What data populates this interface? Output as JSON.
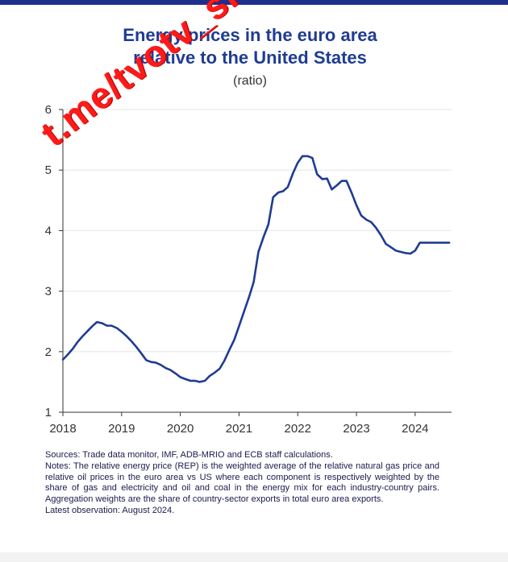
{
  "header": {
    "title_line1": "Energy prices in the euro area",
    "title_line2": "relative to the United States",
    "subtitle": "(ratio)"
  },
  "watermark": "t.me/tvotv_sk",
  "colors": {
    "line": "#1f3c93",
    "title": "#1f3c93",
    "watermark": "#ff1a1a",
    "topbar": "#1f2f8c"
  },
  "chart_data": {
    "type": "line",
    "title": "Energy prices in the euro area relative to the United States",
    "ylabel": "(ratio)",
    "ylim": [
      1,
      6
    ],
    "xlim": [
      2018.0,
      2024.62
    ],
    "yticks": [
      1,
      2,
      3,
      4,
      5,
      6
    ],
    "xticks": [
      2018,
      2019,
      2020,
      2021,
      2022,
      2023,
      2024
    ],
    "grid": "horizontal",
    "series": [
      {
        "name": "",
        "x": [
          2018.0,
          2018.08,
          2018.17,
          2018.25,
          2018.33,
          2018.42,
          2018.5,
          2018.58,
          2018.67,
          2018.75,
          2018.83,
          2018.92,
          2019.0,
          2019.08,
          2019.17,
          2019.25,
          2019.33,
          2019.42,
          2019.5,
          2019.58,
          2019.67,
          2019.75,
          2019.83,
          2019.92,
          2020.0,
          2020.08,
          2020.17,
          2020.25,
          2020.33,
          2020.42,
          2020.5,
          2020.58,
          2020.67,
          2020.75,
          2020.83,
          2020.92,
          2021.0,
          2021.08,
          2021.17,
          2021.25,
          2021.33,
          2021.42,
          2021.5,
          2021.58,
          2021.67,
          2021.75,
          2021.83,
          2021.92,
          2022.0,
          2022.08,
          2022.17,
          2022.25,
          2022.33,
          2022.42,
          2022.5,
          2022.58,
          2022.67,
          2022.75,
          2022.83,
          2022.92,
          2023.0,
          2023.08,
          2023.17,
          2023.25,
          2023.33,
          2023.42,
          2023.5,
          2023.58,
          2023.67,
          2023.75,
          2023.83,
          2023.92,
          2024.0,
          2024.08,
          2024.17,
          2024.25,
          2024.33,
          2024.42,
          2024.5,
          2024.58
        ],
        "values": [
          1.87,
          1.95,
          2.05,
          2.16,
          2.25,
          2.34,
          2.42,
          2.49,
          2.47,
          2.43,
          2.43,
          2.39,
          2.33,
          2.26,
          2.17,
          2.08,
          1.98,
          1.86,
          1.83,
          1.82,
          1.78,
          1.73,
          1.7,
          1.64,
          1.58,
          1.55,
          1.52,
          1.52,
          1.5,
          1.52,
          1.6,
          1.65,
          1.72,
          1.85,
          2.02,
          2.2,
          2.42,
          2.65,
          2.9,
          3.15,
          3.65,
          3.9,
          4.1,
          4.55,
          4.63,
          4.65,
          4.72,
          4.95,
          5.12,
          5.23,
          5.23,
          5.2,
          4.93,
          4.85,
          4.86,
          4.68,
          4.75,
          4.82,
          4.82,
          4.62,
          4.42,
          4.25,
          4.18,
          4.14,
          4.05,
          3.92,
          3.78,
          3.73,
          3.67,
          3.65,
          3.63,
          3.62,
          3.67,
          3.8,
          3.8,
          3.8,
          3.8,
          3.8,
          3.8,
          3.8
        ]
      }
    ]
  },
  "notes": {
    "sources": "Sources: Trade data monitor, IMF, ADB-MRIO and ECB staff calculations.",
    "notes": "Notes: The relative energy price (REP) is the weighted average of the relative natural gas price and relative oil prices in the euro area vs US where each component is respectively weighted by the share of gas and electricity and oil and coal in the energy mix for each industry-country pairs. Aggregation weights are the share of country-sector exports in total euro area exports.",
    "latest": "Latest observation: August 2024."
  }
}
